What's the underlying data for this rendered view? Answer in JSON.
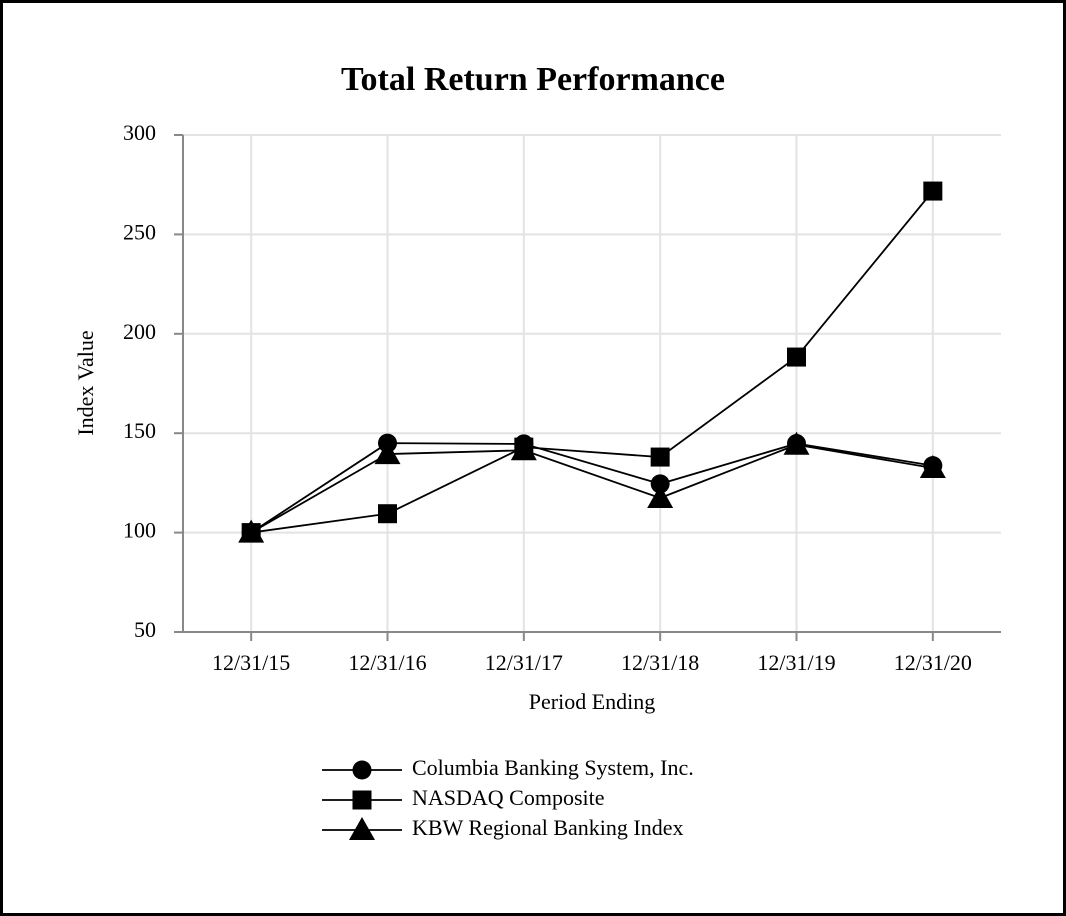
{
  "chart_data": {
    "type": "line",
    "title": "Total Return Performance",
    "x_label": "Period Ending",
    "y_label": "Index Value",
    "categories": [
      "12/31/15",
      "12/31/16",
      "12/31/17",
      "12/31/18",
      "12/31/19",
      "12/31/20"
    ],
    "series": [
      {
        "name": "Columbia Banking System, Inc.",
        "color": "#000000",
        "marker": "circle",
        "values": [
          100,
          145,
          144.6,
          124.5,
          144.8,
          133.7
        ]
      },
      {
        "name": "NASDAQ Composite",
        "color": "#000000",
        "marker": "square",
        "values": [
          100,
          109.5,
          143,
          138,
          188.3,
          271.8
        ]
      },
      {
        "name": "KBW Regional Banking Index",
        "color": "#000000",
        "marker": "triangle",
        "values": [
          100,
          139.5,
          141.4,
          117.4,
          144.2,
          132.5
        ]
      }
    ],
    "ylim": [
      50,
      300
    ],
    "yticks": [
      50,
      100,
      150,
      200,
      250,
      300
    ],
    "grid": true
  }
}
